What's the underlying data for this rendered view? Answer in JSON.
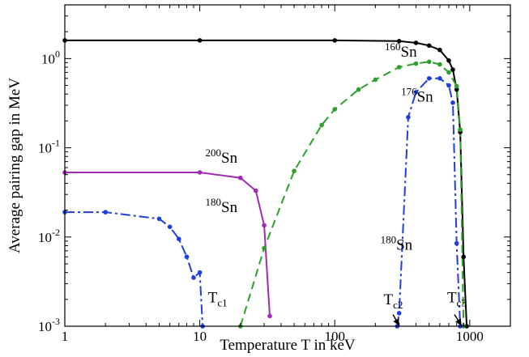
{
  "chart_data": {
    "type": "line",
    "title": "",
    "xlabel": "Temperature T in keV",
    "ylabel": "Average pairing gap in MeV",
    "xscale": "log",
    "yscale": "log",
    "xlim": [
      1,
      2000
    ],
    "ylim": [
      0.001,
      4
    ],
    "grid": false,
    "legend": "none",
    "x_ticks": [
      {
        "value": 1,
        "label": "1"
      },
      {
        "value": 10,
        "label": "10"
      },
      {
        "value": 100,
        "label": "100"
      },
      {
        "value": 1000,
        "label": "1000"
      }
    ],
    "y_ticks": [
      {
        "value": 0.001,
        "base": "10",
        "exp": "-3"
      },
      {
        "value": 0.01,
        "base": "10",
        "exp": "-2"
      },
      {
        "value": 0.1,
        "base": "10",
        "exp": "-1"
      },
      {
        "value": 1,
        "base": "10",
        "exp": "0"
      }
    ],
    "series": [
      {
        "color": "#000000",
        "dash": "solid",
        "x": [
          1,
          10,
          100,
          300,
          400,
          500,
          600,
          700,
          750,
          800,
          850,
          900,
          950
        ],
        "y": [
          1.6,
          1.6,
          1.6,
          1.57,
          1.5,
          1.4,
          1.25,
          0.95,
          0.75,
          0.45,
          0.15,
          0.006,
          0.001
        ]
      },
      {
        "color": "#2ca02c",
        "dash": "dashed",
        "x": [
          20,
          30,
          50,
          80,
          100,
          150,
          200,
          300,
          400,
          500,
          600,
          700,
          800,
          850,
          900
        ],
        "y": [
          0.001,
          0.0075,
          0.055,
          0.18,
          0.27,
          0.45,
          0.58,
          0.8,
          0.88,
          0.92,
          0.86,
          0.7,
          0.49,
          0.16,
          0.001
        ]
      },
      {
        "color": "#1f3fdc",
        "dash": "dashdot",
        "x": [
          290,
          300,
          350,
          400,
          500,
          600,
          700,
          750,
          800,
          850
        ],
        "y": [
          0.001,
          0.0014,
          0.22,
          0.42,
          0.6,
          0.6,
          0.5,
          0.32,
          0.0085,
          0.001
        ]
      },
      {
        "color": "#a02ab4",
        "dash": "solid",
        "x": [
          1,
          10,
          20,
          26,
          30,
          33
        ],
        "y": [
          0.053,
          0.053,
          0.046,
          0.033,
          0.0135,
          0.0013
        ]
      },
      {
        "color": "#1f3fdc",
        "dash": "dashdot",
        "x": [
          1,
          2,
          5,
          6,
          7,
          8,
          9,
          10,
          10.5
        ],
        "y": [
          0.019,
          0.019,
          0.016,
          0.013,
          0.0095,
          0.006,
          0.0035,
          0.004,
          0.001
        ]
      }
    ],
    "annotations": [
      {
        "base": "Sn",
        "sup": "160",
        "x": 235,
        "y": 1.05
      },
      {
        "base": "Sn",
        "sup": "176",
        "x": 310,
        "y": 0.33
      },
      {
        "base": "Sn",
        "sup": "200",
        "x": 11,
        "y": 0.068
      },
      {
        "base": "Sn",
        "sup": "180",
        "x": 11,
        "y": 0.019
      },
      {
        "base": "Sn",
        "sup": "180",
        "x": 218,
        "y": 0.0072
      }
    ],
    "tc_labels": [
      {
        "main": "T",
        "sub": "c1",
        "x": 11.5,
        "y": 0.00185
      },
      {
        "main": "T",
        "sub": "c2",
        "x": 230,
        "y": 0.00175
      },
      {
        "main": "T",
        "sub": "c3",
        "x": 680,
        "y": 0.00185
      }
    ],
    "arrows": [
      {
        "from": [
          270,
          0.00135
        ],
        "to": [
          300,
          0.00102
        ]
      },
      {
        "from": [
          770,
          0.00135
        ],
        "to": [
          870,
          0.00102
        ]
      }
    ]
  }
}
